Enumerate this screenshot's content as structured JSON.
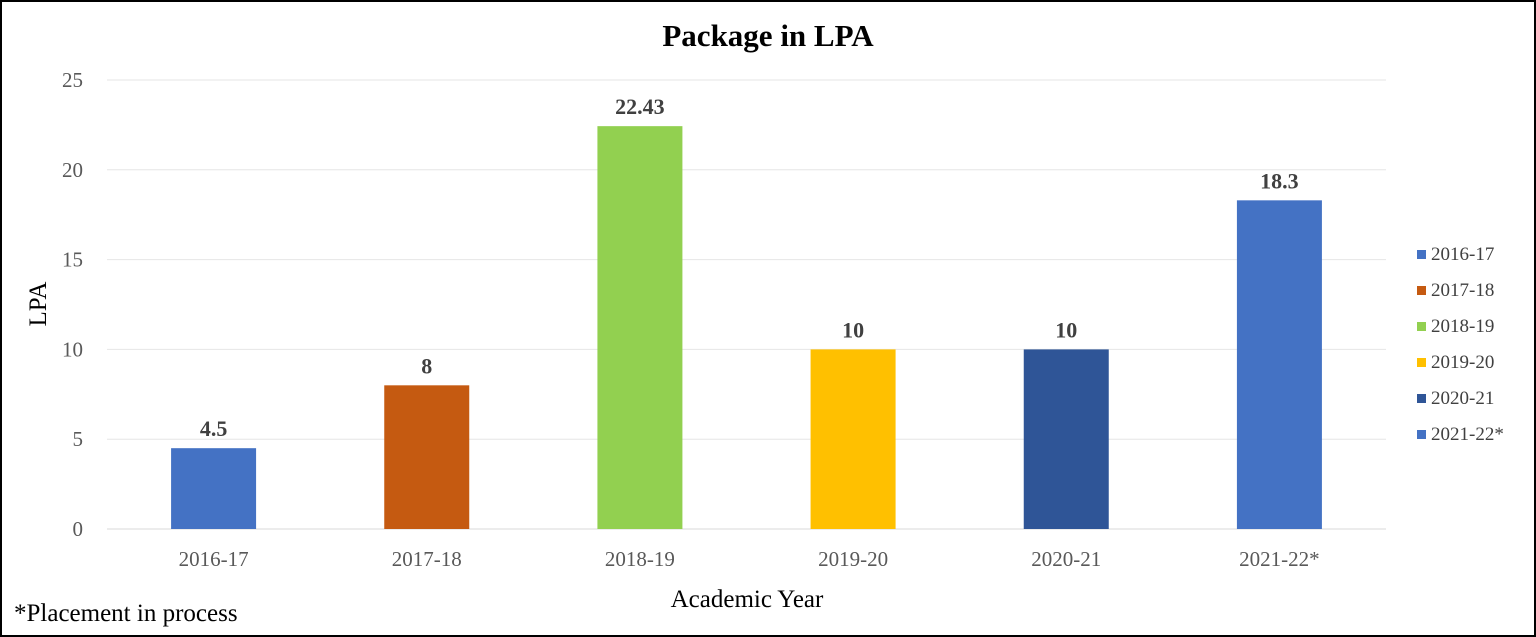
{
  "chart_data": {
    "type": "bar",
    "title": "Package in LPA",
    "xlabel": "Academic Year",
    "ylabel": "LPA",
    "categories": [
      "2016-17",
      "2017-18",
      "2018-19",
      "2019-20",
      "2020-21",
      "2021-22*"
    ],
    "values": [
      4.5,
      8,
      22.43,
      10,
      10,
      18.3
    ],
    "data_labels": [
      "4.5",
      "8",
      "22.43",
      "10",
      "10",
      "18.3"
    ],
    "colors": [
      "#4472C4",
      "#C55A11",
      "#92D050",
      "#FFC000",
      "#2F5597",
      "#4472C4"
    ],
    "ylim": [
      0,
      25
    ],
    "yticks": [
      0,
      5,
      10,
      15,
      20,
      25
    ],
    "grid": true,
    "legend": {
      "position": "right",
      "entries": [
        "2016-17",
        "2017-18",
        "2018-19",
        "2019-20",
        "2020-21",
        "2021-22*"
      ]
    }
  },
  "footnote": "*Placement  in process"
}
